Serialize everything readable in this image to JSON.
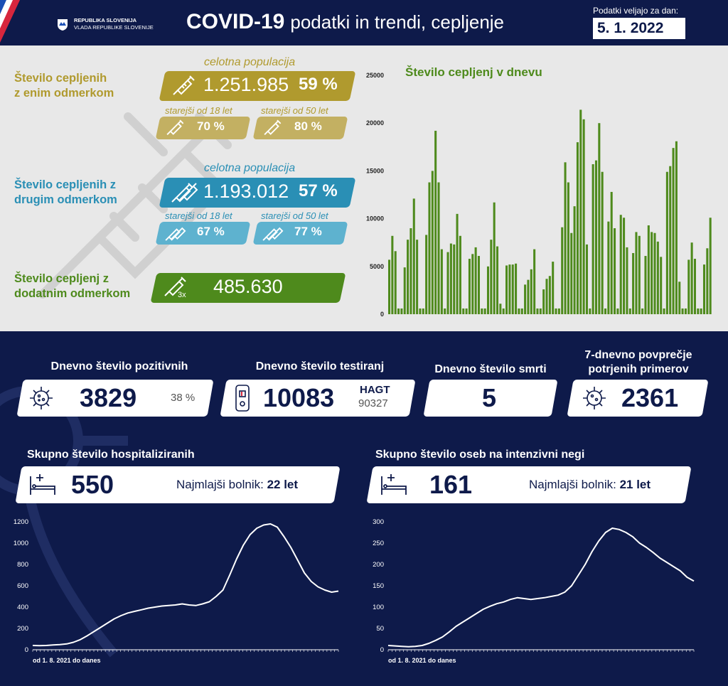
{
  "header": {
    "gov_line1": "REPUBLIKA SLOVENIJA",
    "gov_line2": "VLADA REPUBLIKE SLOVENIJE",
    "title_main": "COVID-19",
    "title_sub": "podatki in trendi, cepljenje",
    "date_label": "Podatki veljajo za dan:",
    "date_value": "5. 1. 2022"
  },
  "vaccination": {
    "first": {
      "label_l1": "Število cepljenih",
      "label_l2": "z enim odmerkom",
      "pop_label": "celotna populacija",
      "count": "1.251.985",
      "pct": "59 %",
      "age18_label": "starejši od 18 let",
      "age18_pct": "70 %",
      "age50_label": "starejši od 50 let",
      "age50_pct": "80 %"
    },
    "second": {
      "label_l1": "Število cepljenih z",
      "label_l2": "drugim odmerkom",
      "pop_label": "celotna populacija",
      "count": "1.193.012",
      "pct": "57 %",
      "age18_label": "starejši od 18 let",
      "age18_pct": "67 %",
      "age50_label": "starejši od 50 let",
      "age50_pct": "77 %"
    },
    "booster": {
      "label_l1": "Število cepljenj z",
      "label_l2": "dodatnim odmerkom",
      "dose_mark": "3x",
      "count": "485.630"
    }
  },
  "stats": {
    "positive": {
      "title": "Dnevno število pozitivnih",
      "value": "3829",
      "pct": "38 %"
    },
    "tests": {
      "title": "Dnevno število testiranj",
      "value": "10083",
      "hagt_label": "HAGT",
      "hagt_value": "90327"
    },
    "deaths": {
      "title": "Dnevno število smrti",
      "value": "5"
    },
    "avg7": {
      "title_l1": "7-dnevno povprečje",
      "title_l2": "potrjenih primerov",
      "value": "2361"
    }
  },
  "hosp": {
    "title": "Skupno število hospitaliziranih",
    "value": "550",
    "youngest_label": "Najmlajši bolnik:",
    "youngest_value": "22 let"
  },
  "icu": {
    "title": "Skupno število oseb na intenzivni negi",
    "value": "161",
    "youngest_label": "Najmlajši bolnik:",
    "youngest_value": "21 let"
  },
  "colors": {
    "navy": "#0e1a4a",
    "gold": "#b09a2e",
    "blue": "#2a8fb5",
    "green": "#4e8a1c"
  },
  "chart_data": [
    {
      "type": "bar",
      "title": "Število cepljenj v dnevu",
      "ylim": [
        0,
        25000
      ],
      "yticks": [
        0,
        5000,
        10000,
        15000,
        20000,
        25000
      ],
      "values": [
        5700,
        8200,
        6600,
        600,
        600,
        4900,
        7800,
        9000,
        12100,
        7800,
        600,
        600,
        8300,
        13800,
        15000,
        19200,
        13800,
        6800,
        600,
        6500,
        7400,
        7300,
        10500,
        8200,
        600,
        600,
        5800,
        6300,
        7000,
        6100,
        600,
        600,
        5000,
        7800,
        11700,
        7100,
        1100,
        600,
        5100,
        5200,
        5200,
        5300,
        600,
        600,
        3100,
        3600,
        4700,
        6800,
        600,
        600,
        2600,
        3700,
        4000,
        5500,
        600,
        600,
        9100,
        15900,
        13800,
        8500,
        11300,
        18000,
        21400,
        20400,
        7300,
        600,
        15700,
        16100,
        20000,
        14900,
        600,
        9700,
        12800,
        9000,
        600,
        10400,
        10100,
        7000,
        600,
        6400,
        8600,
        8200,
        600,
        6100,
        9300,
        8600,
        8500,
        7600,
        6000,
        600,
        14900,
        15500,
        17400,
        18100,
        3400,
        600,
        600,
        5700,
        7500,
        5800,
        600,
        600,
        5200,
        6900,
        10100
      ],
      "series_color": "#4e8a1c"
    },
    {
      "type": "line",
      "title": "Skupno število hospitaliziranih",
      "xlabel": "od 1. 8. 2021 do danes",
      "ylim": [
        0,
        1200
      ],
      "yticks": [
        0,
        200,
        400,
        600,
        800,
        1000,
        1200
      ],
      "values": [
        40,
        38,
        40,
        45,
        48,
        55,
        70,
        95,
        130,
        170,
        210,
        250,
        290,
        320,
        345,
        360,
        375,
        390,
        400,
        410,
        415,
        420,
        430,
        420,
        415,
        430,
        450,
        500,
        560,
        700,
        850,
        980,
        1080,
        1140,
        1170,
        1180,
        1150,
        1060,
        960,
        840,
        720,
        640,
        590,
        560,
        540,
        550
      ]
    },
    {
      "type": "line",
      "title": "Skupno število oseb na intenzivni negi",
      "xlabel": "od 1. 8. 2021 do danes",
      "ylim": [
        0,
        300
      ],
      "yticks": [
        0,
        50,
        100,
        150,
        200,
        250,
        300
      ],
      "values": [
        10,
        9,
        8,
        7,
        8,
        10,
        15,
        22,
        30,
        42,
        55,
        65,
        75,
        85,
        95,
        102,
        108,
        112,
        118,
        122,
        120,
        118,
        120,
        122,
        125,
        128,
        135,
        150,
        175,
        200,
        230,
        255,
        275,
        285,
        282,
        275,
        265,
        250,
        240,
        228,
        215,
        205,
        195,
        185,
        170,
        161
      ]
    }
  ]
}
